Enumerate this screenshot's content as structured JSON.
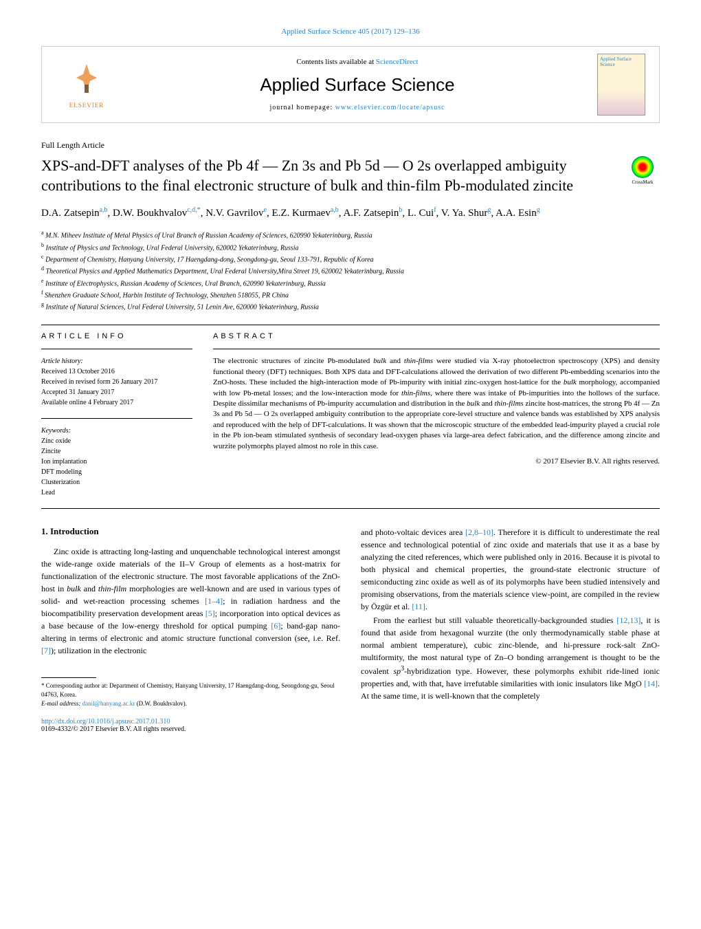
{
  "header": {
    "citation": "Applied Surface Science 405 (2017) 129–136",
    "contents_prefix": "Contents lists available at ",
    "sciencedirect": "ScienceDirect",
    "journal_title": "Applied Surface Science",
    "homepage_prefix": "journal homepage: ",
    "homepage_url": "www.elsevier.com/locate/apsusc",
    "elsevier": "ELSEVIER",
    "cover_text": "Applied Surface Science",
    "crossmark": "CrossMark"
  },
  "article": {
    "type": "Full Length Article",
    "title_1": "XPS-and-DFT analyses of the Pb 4f — Zn 3s and Pb 5d — O 2s overlapped ambiguity contributions to the final electronic structure of bulk and thin-film Pb-modulated zincite",
    "authors_html": "D.A. Zatsepin<sup class='author-sup'>a,b</sup>, D.W. Boukhvalov<sup class='author-sup'>c,d,*</sup>, N.V. Gavrilov<sup class='author-sup'>e</sup>, E.Z. Kurmaev<sup class='author-sup'>a,b</sup>, A.F. Zatsepin<sup class='author-sup'>b</sup>, L. Cui<sup class='author-sup'>f</sup>, V. Ya. Shur<sup class='author-sup'>g</sup>, A.A. Esin<sup class='author-sup'>g</sup>",
    "affiliations": [
      {
        "sup": "a",
        "text": "M.N. Miheev Institute of Metal Physics of Ural Branch of Russian Academy of Sciences, 620990 Yekaterinburg, Russia"
      },
      {
        "sup": "b",
        "text": "Institute of Physics and Technology, Ural Federal University, 620002 Yekaterinburg, Russia"
      },
      {
        "sup": "c",
        "text": "Department of Chemistry, Hanyang University, 17 Haengdang-dong, Seongdong-gu, Seoul 133-791, Republic of Korea"
      },
      {
        "sup": "d",
        "text": "Theoretical Physics and Applied Mathematics Department, Ural Federal University,Mira Street 19, 620002 Yekaterinburg, Russia"
      },
      {
        "sup": "e",
        "text": "Institute of Electrophysics, Russian Academy of Sciences, Ural Branch, 620990 Yekaterinburg, Russia"
      },
      {
        "sup": "f",
        "text": "Shenzhen Graduate School, Harbin Institute of Technology, Shenzhen 518055, PR China"
      },
      {
        "sup": "g",
        "text": "Institute of Natural Sciences, Ural Federal University, 51 Lenin Ave, 620000 Yekaterinburg, Russia"
      }
    ]
  },
  "info": {
    "heading": "ARTICLE INFO",
    "history_label": "Article history:",
    "history": [
      "Received 13 October 2016",
      "Received in revised form 26 January 2017",
      "Accepted 31 January 2017",
      "Available online 4 February 2017"
    ],
    "keywords_label": "Keywords:",
    "keywords": [
      "Zinc oxide",
      "Zincite",
      "Ion implantation",
      "DFT modeling",
      "Clusterization",
      "Lead"
    ]
  },
  "abstract": {
    "heading": "ABSTRACT",
    "text": "The electronic structures of zincite Pb-modulated <span class='abstract-italic'>bulk</span> and <span class='abstract-italic'>thin-films</span> were studied via X-ray photoelectron spectroscopy (XPS) and density functional theory (DFT) techniques. Both XPS data and DFT-calculations allowed the derivation of two different Pb-embedding scenarios into the ZnO-hosts. These included the high-interaction mode of Pb-impurity with initial zinc-oxygen host-lattice for the <span class='abstract-italic'>bulk</span> morphology, accompanied with low Pb-metal losses; and the low-interaction mode for <span class='abstract-italic'>thin-films</span>, where there was intake of Pb-impurities into the hollows of the surface. Despite dissimilar mechanisms of Pb-impurity accumulation and distribution in the <span class='abstract-italic'>bulk</span> and <span class='abstract-italic'>thin-films</span> zincite host-matrices, the strong Pb 4f — Zn 3s and Pb 5d — O 2s overlapped ambiguity contribution to the appropriate core-level structure and valence bands was established by XPS analysis and reproduced with the help of DFT-calculations. It was shown that the microscopic structure of the embedded lead-impurity played a crucial role in the Pb ion-beam stimulated synthesis of secondary lead-oxygen phases via large-area defect fabrication, and the difference among zincite and wurzite polymorphs played almost no role in this case.",
    "copyright": "© 2017 Elsevier B.V. All rights reserved."
  },
  "body": {
    "section_title": "1. Introduction",
    "left_para": "Zinc oxide is attracting long-lasting and unquenchable technological interest amongst the wide-range oxide materials of the II–V Group of elements as a host-matrix for functionalization of the electronic structure. The most favorable applications of the ZnO-host in <span class='body-italic'>bulk</span> and <span class='body-italic'>thin-film</span> morphologies are well-known and are used in various types of solid- and wet-reaction processing schemes <span class='ref-link'>[1–4]</span>; in radiation hardness and the biocompatibility preservation development areas <span class='ref-link'>[5]</span>; incorporation into optical devices as a base because of the low-energy threshold for optical pumping <span class='ref-link'>[6]</span>; band-gap nano-altering in terms of electronic and atomic structure functional conversion (see, i.e. Ref. <span class='ref-link'>[7]</span>); utilization in the electronic",
    "right_para_1": "and photo-voltaic devices area <span class='ref-link'>[2,8–10]</span>. Therefore it is difficult to underestimate the real essence and technological potential of zinc oxide and materials that use it as a base by analyzing the cited references, which were published only in 2016. Because it is pivotal to both physical and chemical properties, the ground-state electronic structure of semiconducting zinc oxide as well as of its polymorphs have been studied intensively and promising observations, from the materials science view-point, are compiled in the review by Özgür et al. <span class='ref-link'>[11]</span>.",
    "right_para_2": "From the earliest but still valuable theoretically-backgrounded studies <span class='ref-link'>[12,13]</span>, it is found that aside from hexagonal wurzite (the only thermodynamically stable phase at normal ambient temperature), cubic zinc-blende, and hi-pressure rock-salt ZnO-multiformity, the most natural type of Zn–O bonding arrangement is thought to be the covalent <span class='body-italic'>sp</span><sup>3</sup>-hybridization type. However, these polymorphs exhibit ride-lined ionic properties and, with that, have irrefutable similarities with ionic insulators like MgO <span class='ref-link'>[14]</span>. At the same time, it is well-known that the completely"
  },
  "footnote": {
    "corresp": "* Corresponding author at: Department of Chemistry, Hanyang University, 17 Haengdang-dong, Seongdong-gu, Seoul 04763, Korea.",
    "email_label": "E-mail address: ",
    "email": "danil@hanyang.ac.kr",
    "email_name": " (D.W. Boukhvalov)."
  },
  "doi": {
    "url": "http://dx.doi.org/10.1016/j.apsusc.2017.01.310",
    "issn": "0169-4332/© 2017 Elsevier B.V. All rights reserved."
  }
}
